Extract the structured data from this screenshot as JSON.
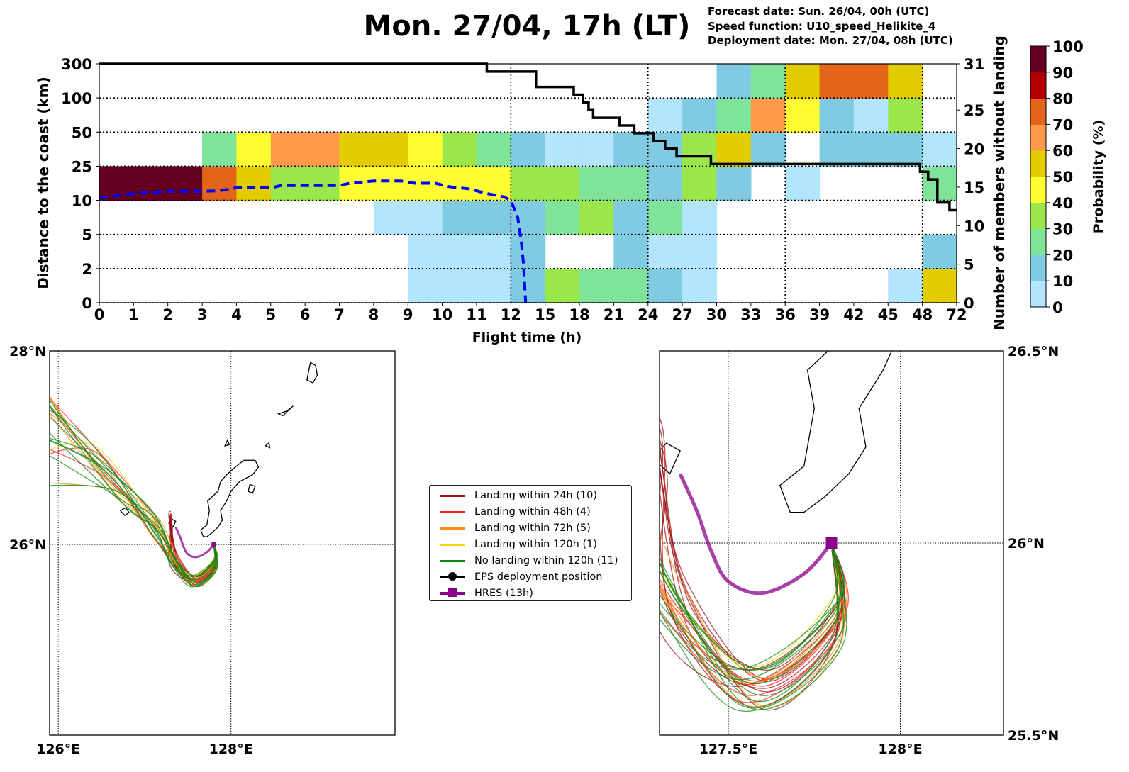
{
  "header": {
    "title": "Mon. 27/04, 17h (LT)",
    "info": [
      "Forecast date: Sun. 26/04, 00h (UTC)",
      "Speed function: U10_speed_Helikite_4",
      "Deployment date: Mon. 27/04, 08h (UTC)"
    ]
  },
  "colors": {
    "bins": [
      "#b3e5fc",
      "#80cbe2",
      "#80e39a",
      "#9be64b",
      "#fffe33",
      "#e3cc00",
      "#ff9a4a",
      "#e3651a",
      "#b30000",
      "#660020"
    ],
    "members_line": "#000000",
    "median_line": "#0000ff"
  },
  "chart_data": [
    {
      "type": "heatmap",
      "xlabel": "Flight time (h)",
      "ylabel": "Distance to the coast (km)",
      "y2label": "Number of members without landing",
      "colorbar_label": "Probability (%)",
      "x_ticks": [
        "0",
        "1",
        "2",
        "3",
        "4",
        "5",
        "6",
        "7",
        "8",
        "9",
        "10",
        "11",
        "12",
        "15",
        "18",
        "21",
        "24",
        "27",
        "30",
        "33",
        "36",
        "39",
        "42",
        "45",
        "48",
        "72"
      ],
      "x_bounds_h": [
        0,
        1,
        2,
        3,
        4,
        5,
        6,
        7,
        8,
        9,
        10,
        11,
        12,
        15,
        18,
        21,
        24,
        27,
        30,
        33,
        36,
        39,
        42,
        45,
        48,
        72
      ],
      "y_ticks": [
        "0",
        "2",
        "5",
        "10",
        "25",
        "50",
        "100",
        "300"
      ],
      "y_bounds_km": [
        0,
        2,
        5,
        10,
        25,
        50,
        100,
        300
      ],
      "y2_ticks": [
        "0",
        "5",
        "10",
        "15",
        "20",
        "25",
        "31"
      ],
      "y2_range": [
        0,
        31
      ],
      "colorbar_ticks": [
        "0",
        "10",
        "20",
        "30",
        "40",
        "50",
        "60",
        "70",
        "80",
        "90",
        "100"
      ],
      "grid": "dotted at 12h, 24h, 36h, 48h and every distance boundary",
      "cells_probability_pct_rows_bottom_up": [
        [
          null,
          null,
          null,
          null,
          null,
          null,
          null,
          null,
          null,
          5,
          5,
          5,
          15,
          35,
          25,
          25,
          15,
          5,
          null,
          null,
          null,
          null,
          null,
          5,
          55
        ],
        [
          null,
          null,
          null,
          null,
          null,
          null,
          null,
          null,
          null,
          5,
          5,
          5,
          15,
          null,
          null,
          15,
          5,
          5,
          null,
          null,
          null,
          null,
          null,
          null,
          15
        ],
        [
          null,
          null,
          null,
          null,
          null,
          null,
          null,
          null,
          5,
          5,
          15,
          15,
          15,
          25,
          35,
          15,
          25,
          5,
          null,
          null,
          null,
          null,
          null,
          null,
          null
        ],
        [
          95,
          95,
          95,
          75,
          55,
          35,
          35,
          45,
          45,
          45,
          45,
          45,
          35,
          35,
          25,
          25,
          15,
          35,
          15,
          null,
          5,
          null,
          null,
          null,
          25
        ],
        [
          null,
          null,
          null,
          25,
          45,
          65,
          65,
          55,
          55,
          45,
          35,
          25,
          15,
          5,
          5,
          15,
          15,
          35,
          55,
          15,
          null,
          15,
          15,
          15,
          5
        ],
        [
          null,
          null,
          null,
          null,
          null,
          null,
          null,
          null,
          null,
          null,
          null,
          null,
          null,
          null,
          null,
          null,
          5,
          15,
          25,
          65,
          45,
          15,
          5,
          35,
          null
        ],
        [
          null,
          null,
          null,
          null,
          null,
          null,
          null,
          null,
          null,
          null,
          null,
          null,
          null,
          null,
          null,
          null,
          null,
          null,
          15,
          25,
          55,
          75,
          75,
          55,
          null
        ]
      ],
      "members_without_landing_steps": [
        [
          0,
          31
        ],
        [
          11.3,
          30
        ],
        [
          14.2,
          28
        ],
        [
          17.5,
          27
        ],
        [
          18.3,
          26
        ],
        [
          18.8,
          25
        ],
        [
          19.2,
          24
        ],
        [
          21.5,
          23
        ],
        [
          22.8,
          22
        ],
        [
          24.5,
          21
        ],
        [
          25.5,
          20
        ],
        [
          26.5,
          19
        ],
        [
          29.5,
          18
        ],
        [
          47.8,
          17
        ],
        [
          52,
          16
        ],
        [
          58.5,
          13
        ],
        [
          67,
          12
        ],
        [
          72,
          12
        ]
      ],
      "median_distance_km": [
        [
          0,
          11
        ],
        [
          0.5,
          12
        ],
        [
          1,
          13
        ],
        [
          1.5,
          13.5
        ],
        [
          2,
          14
        ],
        [
          3,
          14
        ],
        [
          3.5,
          14.2
        ],
        [
          4,
          15.5
        ],
        [
          5,
          15.5
        ],
        [
          5.3,
          16.5
        ],
        [
          7,
          16.5
        ],
        [
          7.3,
          17.5
        ],
        [
          8,
          18.5
        ],
        [
          8.8,
          18.5
        ],
        [
          9.2,
          17.5
        ],
        [
          9.8,
          17.5
        ],
        [
          10.2,
          16
        ],
        [
          10.8,
          15
        ],
        [
          11.3,
          13
        ],
        [
          11.8,
          11.5
        ],
        [
          12,
          10
        ],
        [
          12.6,
          7.5
        ],
        [
          12.9,
          4.5
        ],
        [
          13.1,
          2.5
        ],
        [
          13.3,
          0
        ]
      ]
    },
    {
      "type": "map",
      "name": "overview",
      "extent": [
        125.9,
        129.9,
        24.03,
        28.0
      ],
      "lon_ticks": [
        {
          "v": 126,
          "label": "126°E"
        },
        {
          "v": 128,
          "label": "128°E"
        }
      ],
      "lat_ticks": [
        {
          "v": 28,
          "label": "28°N"
        },
        {
          "v": 26,
          "label": "26°N"
        }
      ],
      "lat_label_side": "left"
    },
    {
      "type": "map",
      "name": "zoom",
      "extent": [
        127.3,
        128.3,
        25.5,
        26.5
      ],
      "lon_ticks": [
        {
          "v": 127.5,
          "label": "127.5°E"
        },
        {
          "v": 128,
          "label": "128°E"
        }
      ],
      "lat_ticks": [
        {
          "v": 26.5,
          "label": "26.5°N"
        },
        {
          "v": 26,
          "label": "26°N"
        },
        {
          "v": 25.5,
          "label": "25.5°N"
        }
      ],
      "lat_label_side": "right"
    }
  ],
  "trajectories": {
    "deployment": [
      127.8,
      26.0
    ],
    "hres_path": [
      [
        127.8,
        26.0
      ],
      [
        127.72,
        25.92
      ],
      [
        127.6,
        25.87
      ],
      [
        127.5,
        25.9
      ],
      [
        127.45,
        25.98
      ],
      [
        127.41,
        26.08
      ],
      [
        127.36,
        26.18
      ]
    ],
    "categories": [
      {
        "label": "Landing within 24h (10)",
        "count": 10,
        "color": "#a01010"
      },
      {
        "label": "Landing within 48h (4)",
        "count": 4,
        "color": "#ff2020"
      },
      {
        "label": "Landing within 72h (5)",
        "count": 5,
        "color": "#ff8c10"
      },
      {
        "label": "Landing within 120h (1)",
        "count": 1,
        "color": "#ffd700"
      },
      {
        "label": "No landing within 120h (11)",
        "count": 11,
        "color": "#118811"
      }
    ],
    "eps_label": "EPS deployment position",
    "hres_label": "HRES (13h)",
    "hres_color": "#8b008b"
  }
}
